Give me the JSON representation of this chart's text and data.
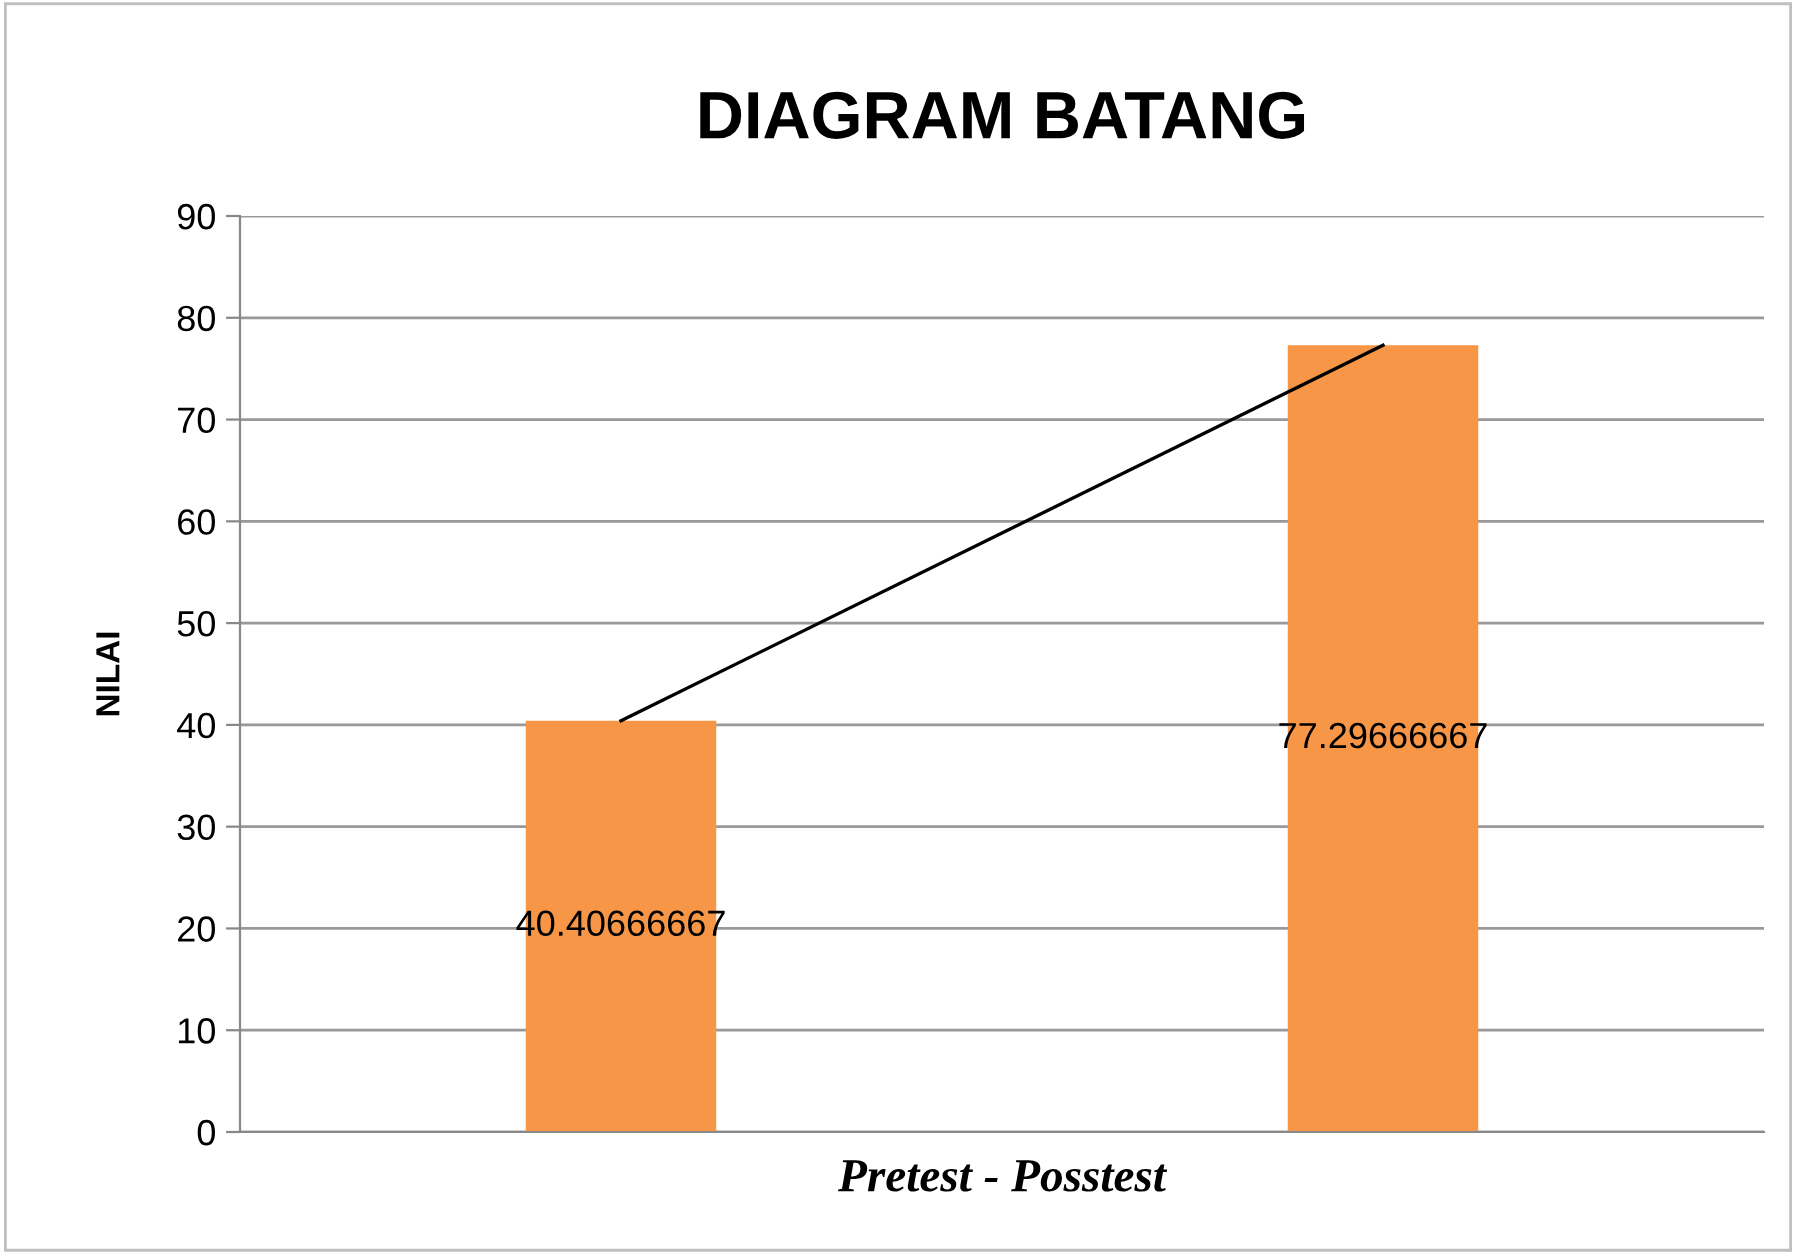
{
  "chart_data": {
    "type": "bar",
    "title": "DIAGRAM BATANG",
    "xlabel": "Pretest - Posstest",
    "ylabel": "NILAI",
    "categories": [
      null,
      null
    ],
    "series": [
      {
        "color": "#f79646",
        "values": [
          40.40666667,
          77.29666667
        ],
        "value_labels": [
          "40.40666667",
          "77.29666667"
        ]
      },
      {
        "type": "line",
        "color": "#000000",
        "values": [
          40.41,
          77.3
        ]
      }
    ],
    "ylim": [
      0,
      90
    ],
    "yticks": [
      0,
      10,
      20,
      30,
      40,
      50,
      60,
      70,
      80,
      90
    ],
    "grid": "y",
    "legend": false,
    "marker": "none"
  }
}
